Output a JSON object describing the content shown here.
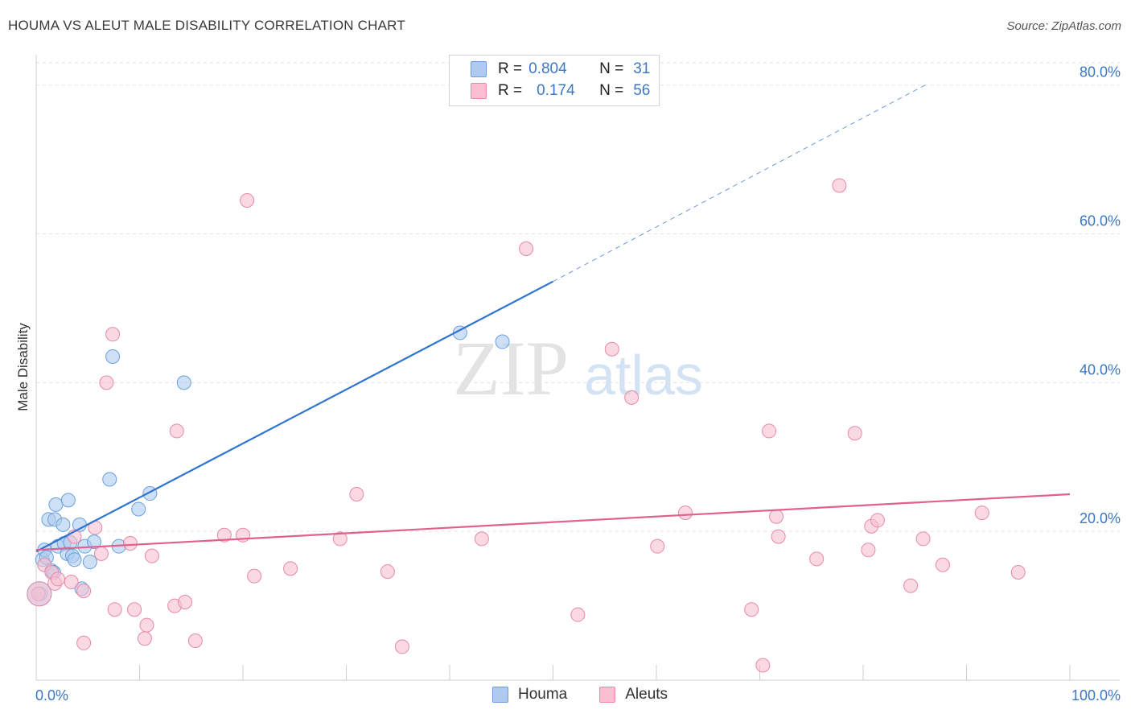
{
  "title": "HOUMA VS ALEUT MALE DISABILITY CORRELATION CHART",
  "source": "Source: ZipAtlas.com",
  "watermark": {
    "zip": "ZIP",
    "atlas": "atlas"
  },
  "legend": {
    "r_label": "R =",
    "n_label": "N =",
    "rows": [
      {
        "name": "Houma",
        "r": "0.804",
        "n": "31",
        "fill": "#aecbef",
        "stroke": "#6a9fdc"
      },
      {
        "name": "Aleuts",
        "r": "0.174",
        "n": "56",
        "fill": "#f7bfd0",
        "stroke": "#e889a7"
      }
    ]
  },
  "chart_data": {
    "type": "scatter",
    "title": "HOUMA VS ALEUT MALE DISABILITY CORRELATION CHART",
    "xlabel": "",
    "ylabel": "Male Disability",
    "xlim": [
      0,
      100
    ],
    "ylim": [
      0,
      83
    ],
    "x_tick_labels": [
      "0.0%",
      "100.0%"
    ],
    "y_ticks": [
      20,
      40,
      60,
      80
    ],
    "y_tick_labels": [
      "20.0%",
      "40.0%",
      "60.0%",
      "80.0%"
    ],
    "grid": true,
    "series": [
      {
        "name": "Houma",
        "color": "#6a9fdc",
        "fill": "#aecbef",
        "trend": {
          "x0": 0,
          "y0": 17.3,
          "x1": 50,
          "y1": 53.6,
          "dash_x1": 86,
          "dash_y1": 80.0,
          "color": "#2f74d0"
        },
        "points": [
          {
            "x": 0.4,
            "y": 11.6
          },
          {
            "x": 0.6,
            "y": 16.2
          },
          {
            "x": 0.8,
            "y": 17.5
          },
          {
            "x": 1.0,
            "y": 16.5
          },
          {
            "x": 1.2,
            "y": 21.6
          },
          {
            "x": 1.5,
            "y": 14.7
          },
          {
            "x": 1.7,
            "y": 14.5
          },
          {
            "x": 1.8,
            "y": 21.6
          },
          {
            "x": 1.9,
            "y": 23.6
          },
          {
            "x": 2.1,
            "y": 18.0
          },
          {
            "x": 2.6,
            "y": 20.9
          },
          {
            "x": 2.7,
            "y": 18.4
          },
          {
            "x": 3.0,
            "y": 17.0
          },
          {
            "x": 3.1,
            "y": 24.2
          },
          {
            "x": 3.3,
            "y": 18.5
          },
          {
            "x": 3.5,
            "y": 16.7
          },
          {
            "x": 3.7,
            "y": 16.2
          },
          {
            "x": 4.2,
            "y": 20.9
          },
          {
            "x": 4.4,
            "y": 12.3
          },
          {
            "x": 4.7,
            "y": 18.0
          },
          {
            "x": 5.2,
            "y": 15.9
          },
          {
            "x": 5.6,
            "y": 18.6
          },
          {
            "x": 7.1,
            "y": 27.0
          },
          {
            "x": 7.4,
            "y": 43.5
          },
          {
            "x": 8.0,
            "y": 18.0
          },
          {
            "x": 9.9,
            "y": 23.0
          },
          {
            "x": 11.0,
            "y": 25.1
          },
          {
            "x": 14.3,
            "y": 40.0
          },
          {
            "x": 41.0,
            "y": 46.7
          },
          {
            "x": 45.1,
            "y": 45.5
          },
          {
            "x": 0.3,
            "y": 11.6
          }
        ]
      },
      {
        "name": "Aleuts",
        "color": "#e889a7",
        "fill": "#f7bfd0",
        "trend": {
          "x0": 0,
          "y0": 17.5,
          "x1": 100,
          "y1": 25.0,
          "color": "#e0608e"
        },
        "points": [
          {
            "x": 0.2,
            "y": 11.6
          },
          {
            "x": 0.8,
            "y": 15.5
          },
          {
            "x": 1.5,
            "y": 14.5
          },
          {
            "x": 1.8,
            "y": 13.0
          },
          {
            "x": 2.1,
            "y": 13.6
          },
          {
            "x": 3.4,
            "y": 13.2
          },
          {
            "x": 3.7,
            "y": 19.3
          },
          {
            "x": 4.6,
            "y": 12.0
          },
          {
            "x": 4.6,
            "y": 5.0
          },
          {
            "x": 5.7,
            "y": 20.5
          },
          {
            "x": 6.3,
            "y": 17.0
          },
          {
            "x": 6.8,
            "y": 40.0
          },
          {
            "x": 7.4,
            "y": 46.5
          },
          {
            "x": 7.6,
            "y": 9.5
          },
          {
            "x": 9.1,
            "y": 18.4
          },
          {
            "x": 9.5,
            "y": 9.5
          },
          {
            "x": 10.5,
            "y": 5.6
          },
          {
            "x": 10.7,
            "y": 7.4
          },
          {
            "x": 11.2,
            "y": 16.7
          },
          {
            "x": 13.4,
            "y": 10.0
          },
          {
            "x": 13.6,
            "y": 33.5
          },
          {
            "x": 14.4,
            "y": 10.5
          },
          {
            "x": 15.4,
            "y": 5.3
          },
          {
            "x": 18.2,
            "y": 19.5
          },
          {
            "x": 20.0,
            "y": 19.5
          },
          {
            "x": 20.4,
            "y": 64.5
          },
          {
            "x": 21.1,
            "y": 14.0
          },
          {
            "x": 24.6,
            "y": 15.0
          },
          {
            "x": 29.4,
            "y": 19.0
          },
          {
            "x": 31.0,
            "y": 25.0
          },
          {
            "x": 34.0,
            "y": 14.6
          },
          {
            "x": 35.4,
            "y": 4.5
          },
          {
            "x": 43.1,
            "y": 19.0
          },
          {
            "x": 47.4,
            "y": 58.0
          },
          {
            "x": 52.4,
            "y": 8.8
          },
          {
            "x": 55.7,
            "y": 44.5
          },
          {
            "x": 57.6,
            "y": 38.0
          },
          {
            "x": 60.1,
            "y": 18.0
          },
          {
            "x": 62.8,
            "y": 22.5
          },
          {
            "x": 69.2,
            "y": 9.5
          },
          {
            "x": 70.3,
            "y": 2.0
          },
          {
            "x": 70.9,
            "y": 33.5
          },
          {
            "x": 71.6,
            "y": 22.0
          },
          {
            "x": 71.8,
            "y": 19.3
          },
          {
            "x": 75.5,
            "y": 16.3
          },
          {
            "x": 77.7,
            "y": 66.5
          },
          {
            "x": 79.2,
            "y": 33.2
          },
          {
            "x": 80.5,
            "y": 17.5
          },
          {
            "x": 80.8,
            "y": 20.7
          },
          {
            "x": 81.4,
            "y": 21.5
          },
          {
            "x": 84.6,
            "y": 12.7
          },
          {
            "x": 85.8,
            "y": 19.0
          },
          {
            "x": 87.7,
            "y": 15.5
          },
          {
            "x": 91.5,
            "y": 22.5
          },
          {
            "x": 95.0,
            "y": 14.5
          },
          {
            "x": 0.3,
            "y": 11.6
          }
        ]
      }
    ]
  }
}
